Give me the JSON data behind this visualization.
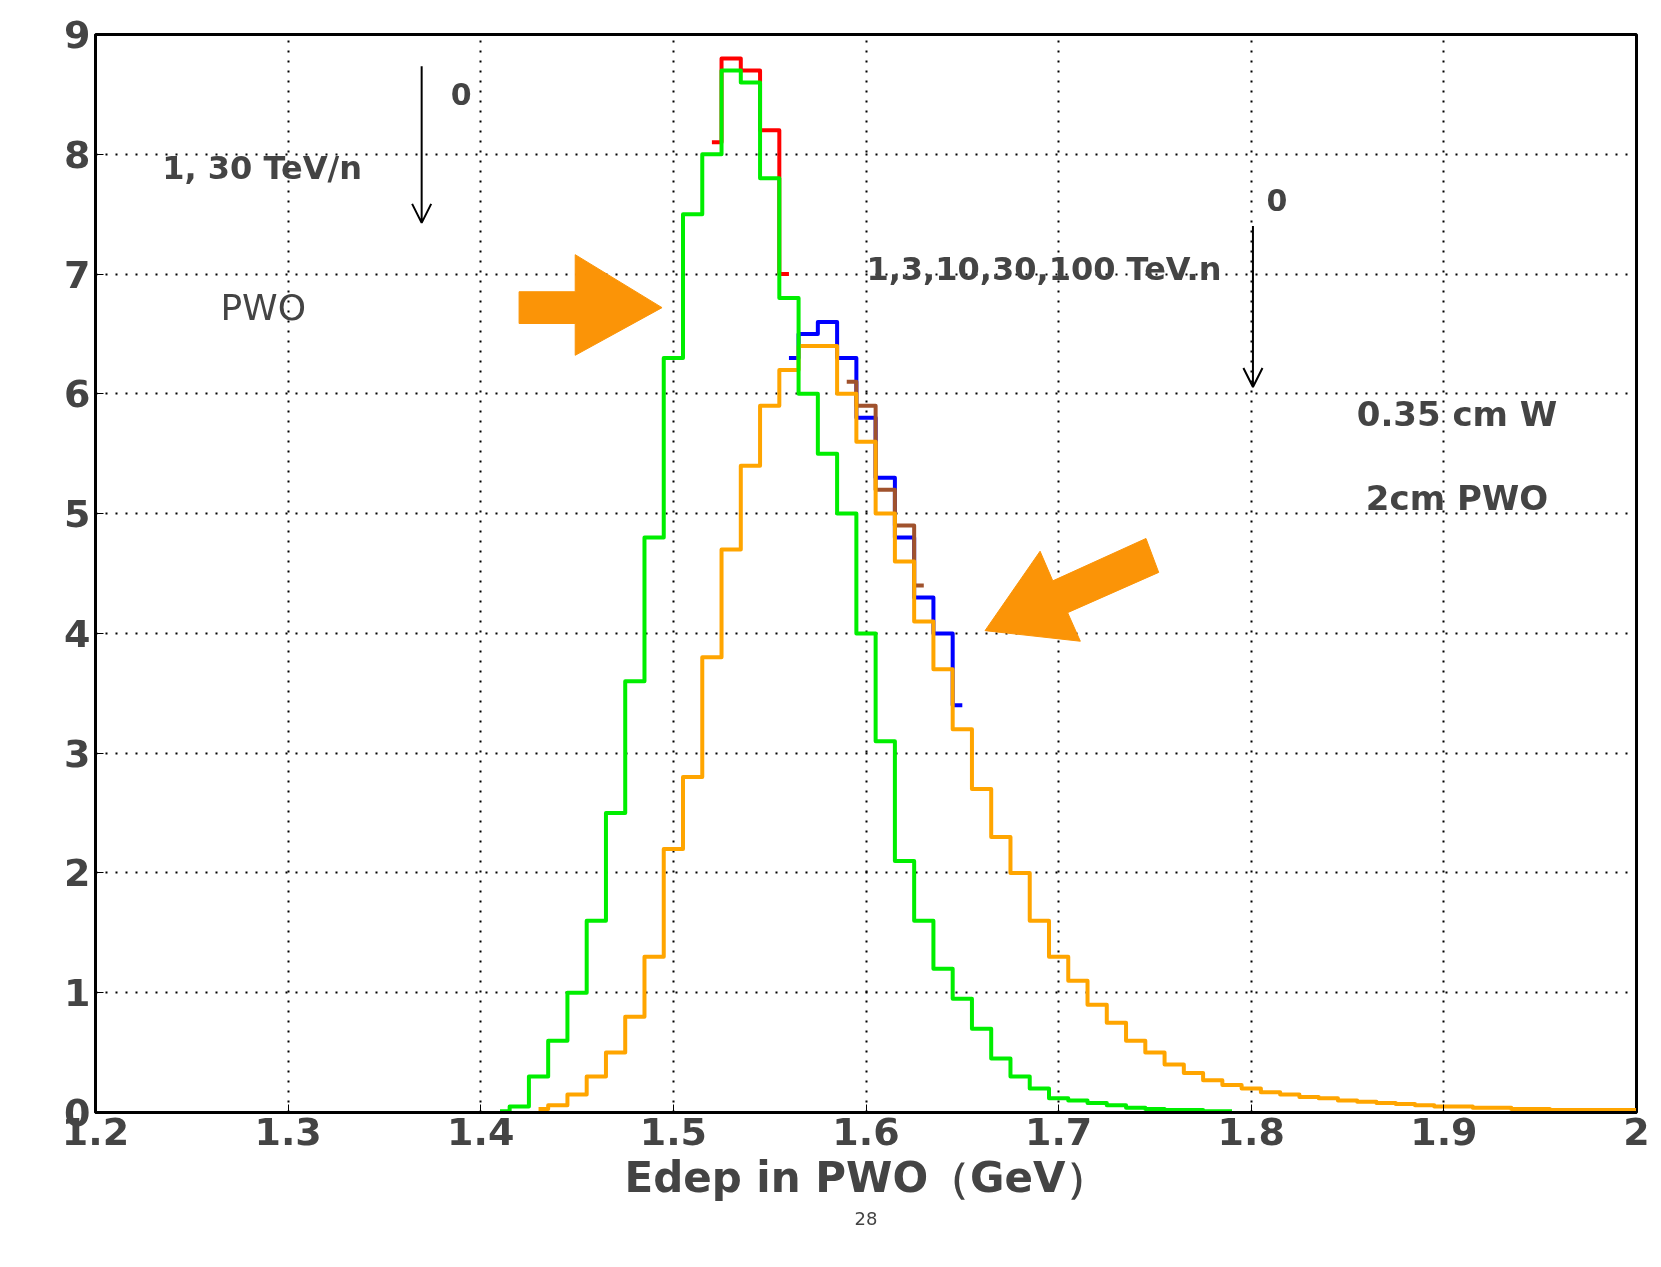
{
  "chart_data": {
    "type": "step",
    "xlabel": "Edep in PWO（GeV）",
    "x": [
      1.41,
      1.42,
      1.43,
      1.44,
      1.45,
      1.46,
      1.47,
      1.48,
      1.49,
      1.5,
      1.51,
      1.52,
      1.53,
      1.54,
      1.55,
      1.56,
      1.57,
      1.58,
      1.59,
      1.6,
      1.61,
      1.62,
      1.63,
      1.64,
      1.65,
      1.66,
      1.67,
      1.68,
      1.69,
      1.7,
      1.71,
      1.72,
      1.73,
      1.74,
      1.75,
      1.76,
      1.77,
      1.78,
      1.79,
      1.8,
      1.81,
      1.82,
      1.83,
      1.84,
      1.85,
      1.86,
      1.87,
      1.88,
      1.89,
      1.9,
      1.91,
      1.92,
      1.93,
      1.94,
      1.95,
      1.96,
      1.97,
      1.98,
      1.99,
      2.0
    ],
    "series": [
      {
        "color": "#0000ff",
        "values": [
          null,
          null,
          null,
          null,
          null,
          null,
          null,
          null,
          null,
          null,
          null,
          null,
          null,
          null,
          null,
          6.3,
          6.5,
          6.6,
          6.3,
          5.8,
          5.3,
          4.8,
          4.3,
          4.0,
          3.4,
          null,
          null,
          null,
          null,
          null,
          null,
          null,
          null,
          null,
          null,
          null,
          null,
          null,
          null,
          null,
          null,
          null,
          null,
          null,
          null,
          null,
          null,
          null,
          null,
          null,
          null,
          null,
          null,
          null,
          null,
          null,
          null,
          null,
          null,
          null
        ]
      },
      {
        "color": "#a0522d",
        "values": [
          null,
          null,
          null,
          null,
          null,
          null,
          null,
          null,
          null,
          null,
          null,
          null,
          null,
          null,
          null,
          null,
          null,
          null,
          6.1,
          5.9,
          5.2,
          4.9,
          4.4,
          null,
          null,
          null,
          null,
          null,
          null,
          null,
          null,
          null,
          null,
          null,
          null,
          null,
          null,
          null,
          null,
          null,
          null,
          null,
          null,
          null,
          null,
          null,
          null,
          null,
          null,
          null,
          null,
          null,
          null,
          null,
          null,
          null,
          null,
          null,
          null,
          null
        ]
      },
      {
        "color": "#ffa500",
        "values": [
          null,
          null,
          0.03,
          0.06,
          0.15,
          0.3,
          0.5,
          0.8,
          1.3,
          2.2,
          2.8,
          3.8,
          4.7,
          5.4,
          5.9,
          6.2,
          6.4,
          6.4,
          6.0,
          5.6,
          5.0,
          4.6,
          4.1,
          3.7,
          3.2,
          2.7,
          2.3,
          2.0,
          1.6,
          1.3,
          1.1,
          0.9,
          0.75,
          0.6,
          0.5,
          0.4,
          0.33,
          0.27,
          0.23,
          0.2,
          0.17,
          0.15,
          0.13,
          0.12,
          0.1,
          0.09,
          0.08,
          0.07,
          0.06,
          0.05,
          0.05,
          0.04,
          0.04,
          0.03,
          0.03,
          0.02,
          0.02,
          0.02,
          0.02,
          0.02
        ]
      },
      {
        "color": "#ff0000",
        "values": [
          null,
          null,
          null,
          null,
          null,
          null,
          null,
          null,
          null,
          null,
          null,
          8.1,
          8.8,
          8.7,
          8.2,
          7.0,
          null,
          null,
          null,
          null,
          null,
          null,
          null,
          null,
          null,
          null,
          null,
          null,
          null,
          null,
          null,
          null,
          null,
          null,
          null,
          null,
          null,
          null,
          null,
          null,
          null,
          null,
          null,
          null,
          null,
          null,
          null,
          null,
          null,
          null,
          null,
          null,
          null,
          null,
          null,
          null,
          null,
          null,
          null,
          null
        ]
      },
      {
        "color": "#00ee00",
        "values": [
          0.01,
          0.05,
          0.3,
          0.6,
          1.0,
          1.6,
          2.5,
          3.6,
          4.8,
          6.3,
          7.5,
          8.0,
          8.7,
          8.6,
          7.8,
          6.8,
          6.0,
          5.5,
          5.0,
          4.0,
          3.1,
          2.1,
          1.6,
          1.2,
          0.95,
          0.7,
          0.45,
          0.3,
          0.2,
          0.12,
          0.1,
          0.08,
          0.06,
          0.04,
          0.03,
          0.02,
          0.02,
          0.01,
          0.01,
          null,
          null,
          null,
          null,
          null,
          null,
          null,
          null,
          null,
          null,
          null,
          null,
          null,
          null,
          null,
          null,
          null,
          null,
          null,
          null,
          null
        ]
      }
    ],
    "xlim": [
      1.2,
      2.0
    ],
    "ylim": [
      0,
      9
    ],
    "xticks": [
      1.2,
      1.3,
      1.4,
      1.5,
      1.6,
      1.7,
      1.8,
      1.9,
      {
        "value": 2.0,
        "label": "2"
      }
    ],
    "yticks": [
      0,
      1,
      2,
      3,
      4,
      5,
      6,
      7,
      8,
      9
    ],
    "grid": true,
    "line_style": "solid",
    "marker": "none",
    "annotations": [
      "0",
      "1, 30 TeV/n",
      "PWO",
      "0",
      "1,3,10,30,100 TeV.n",
      "0.35 cm W",
      "2cm PWO",
      "28"
    ]
  }
}
